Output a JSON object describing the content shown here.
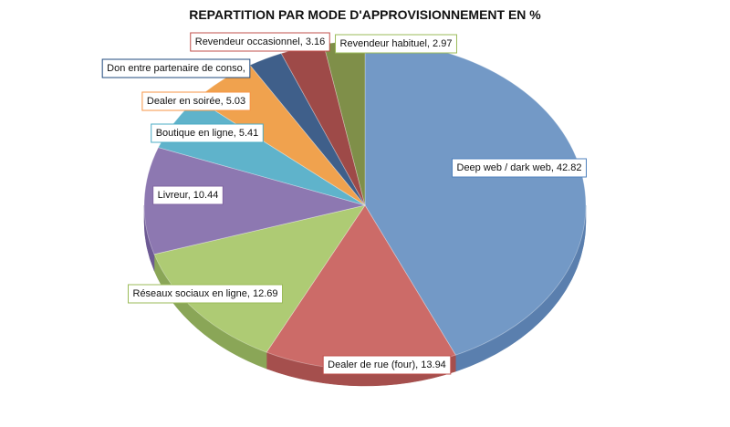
{
  "chart_data": {
    "type": "pie",
    "title": "REPARTITION PAR MODE D'APPROVISIONNEMENT EN %",
    "slices": [
      {
        "name": "Deep web / dark web",
        "value": 42.82,
        "label": "Deep web / dark web, 42.82",
        "color": "#7399c6",
        "border": "#4f81bd"
      },
      {
        "name": "Dealer de rue (four)",
        "value": 13.94,
        "label": "Dealer de rue (four), 13.94",
        "color": "#cc6b68",
        "border": "#c0504d"
      },
      {
        "name": "Réseaux sociaux en ligne",
        "value": 12.69,
        "label": "Réseaux sociaux en ligne, 12.69",
        "color": "#aecb74",
        "border": "#9bbb59"
      },
      {
        "name": "Livreur",
        "value": 10.44,
        "label": "Livreur, 10.44",
        "color": "#8d78b1",
        "border": "#8064a2"
      },
      {
        "name": "Boutique en ligne",
        "value": 5.41,
        "label": "Boutique en ligne, 5.41",
        "color": "#5fb3cb",
        "border": "#4bacc6"
      },
      {
        "name": "Dealer en soirée",
        "value": 5.03,
        "label": "Dealer en soirée, 5.03",
        "color": "#f0a24e",
        "border": "#f79646"
      },
      {
        "name": "Don entre partenaire de conso",
        "value": 2.5,
        "label": "Don entre partenaire de conso,",
        "color": "#3f5f8a",
        "border": "#1f497d"
      },
      {
        "name": "Revendeur occasionnel",
        "value": 3.16,
        "label": "Revendeur occasionnel, 3.16",
        "color": "#9e4a48",
        "border": "#c0504d"
      },
      {
        "name": "Revendeur habituel",
        "value": 2.97,
        "label": "Revendeur habituel, 2.97",
        "color": "#7f8f49",
        "border": "#9bbb59"
      }
    ]
  }
}
